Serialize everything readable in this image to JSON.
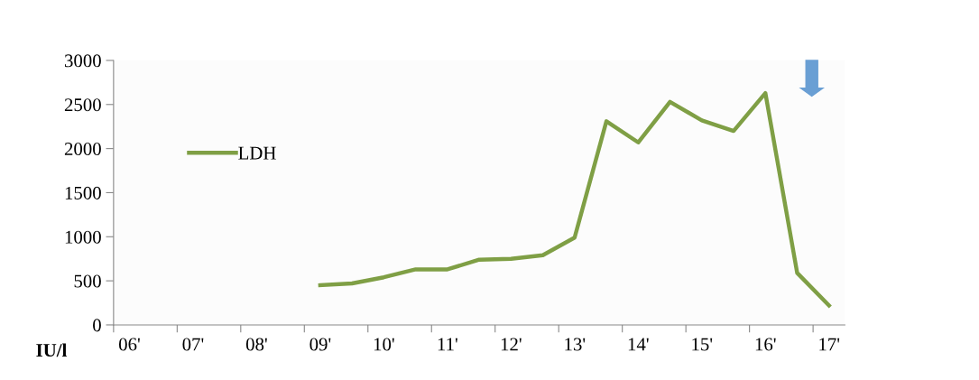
{
  "chart_data": {
    "type": "line",
    "ylabel": "IU/l",
    "x": [
      9.25,
      9.75,
      10.25,
      10.75,
      11.25,
      11.75,
      12.25,
      12.75,
      13.25,
      13.75,
      14.25,
      14.75,
      15.25,
      15.75,
      16.25,
      16.75,
      17.25
    ],
    "series": [
      {
        "name": "LDH",
        "color": "#7f9f45",
        "values": [
          450,
          470,
          540,
          630,
          630,
          740,
          750,
          790,
          990,
          2310,
          2070,
          2530,
          2320,
          2200,
          2630,
          590,
          220
        ]
      }
    ],
    "xlim": [
      6,
      17.5
    ],
    "xticks": [
      {
        "value": 6,
        "label": null
      },
      {
        "value": 7,
        "label": null
      },
      {
        "value": 8,
        "label": null
      },
      {
        "value": 9,
        "label": null
      },
      {
        "value": 10,
        "label": null
      },
      {
        "value": 11,
        "label": null
      },
      {
        "value": 12,
        "label": null
      },
      {
        "value": 13,
        "label": null
      },
      {
        "value": 14,
        "label": null
      },
      {
        "value": 15,
        "label": null
      },
      {
        "value": 16,
        "label": null
      },
      {
        "value": 17,
        "label": null
      },
      {
        "value": 6.25,
        "label": "06'"
      },
      {
        "value": 7.25,
        "label": "07'"
      },
      {
        "value": 8.25,
        "label": "08'"
      },
      {
        "value": 9.25,
        "label": "09'"
      },
      {
        "value": 10.25,
        "label": "10'"
      },
      {
        "value": 11.25,
        "label": "11'"
      },
      {
        "value": 12.25,
        "label": "12'"
      },
      {
        "value": 13.25,
        "label": "13'"
      },
      {
        "value": 14.25,
        "label": "14'"
      },
      {
        "value": 15.25,
        "label": "15'"
      },
      {
        "value": 16.25,
        "label": "16'"
      },
      {
        "value": 17.25,
        "label": "17'"
      }
    ],
    "ylim": [
      0,
      3000
    ],
    "yticks": [
      0,
      500,
      1000,
      1500,
      2000,
      2500,
      3000
    ],
    "grid": false,
    "legend": "top left",
    "marker": "none",
    "line_style": "solid"
  }
}
